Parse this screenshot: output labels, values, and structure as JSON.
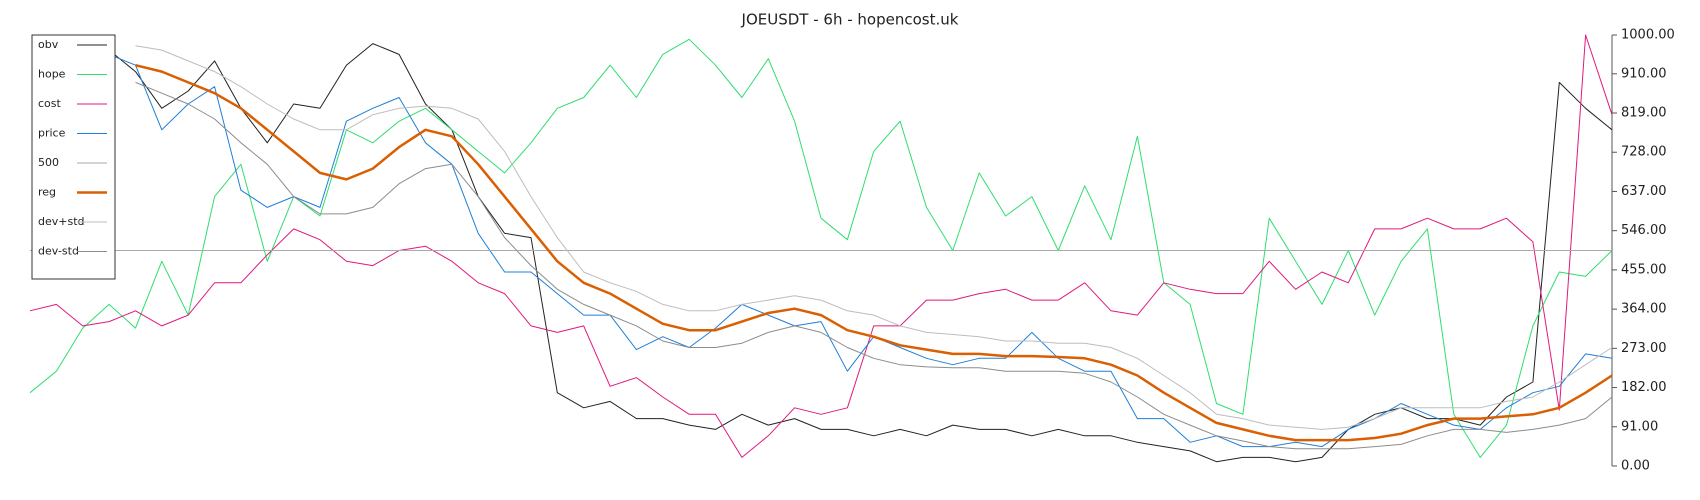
{
  "chart_data": {
    "type": "line",
    "title": "JOEUSDT - 6h - hopencost.uk",
    "ylim": [
      0,
      1000
    ],
    "yticks": [
      {
        "value": 0,
        "label": "0.00"
      },
      {
        "value": 91,
        "label": "91.00"
      },
      {
        "value": 182,
        "label": "182.00"
      },
      {
        "value": 273,
        "label": "273.00"
      },
      {
        "value": 364,
        "label": "364.00"
      },
      {
        "value": 455,
        "label": "455.00"
      },
      {
        "value": 546,
        "label": "546.00"
      },
      {
        "value": 637,
        "label": "637.00"
      },
      {
        "value": 728,
        "label": "728.00"
      },
      {
        "value": 819,
        "label": "819.00"
      },
      {
        "value": 910,
        "label": "910.00"
      },
      {
        "value": 1000,
        "label": "1000.00"
      }
    ],
    "grid": false,
    "legend": "upper left",
    "series": [
      {
        "name": "obv",
        "color": "#222222",
        "width": 1,
        "values": [
          null,
          null,
          null,
          965,
          915,
          830,
          870,
          940,
          830,
          750,
          840,
          830,
          930,
          980,
          955,
          840,
          780,
          625,
          540,
          530,
          170,
          135,
          150,
          110,
          110,
          95,
          85,
          120,
          95,
          110,
          85,
          85,
          70,
          85,
          70,
          95,
          85,
          85,
          70,
          85,
          70,
          70,
          55,
          45,
          35,
          10,
          20,
          20,
          10,
          20,
          85,
          120,
          135,
          110,
          110,
          95,
          160,
          195,
          890,
          830,
          780
        ]
      },
      {
        "name": "hope",
        "color": "#2ede6e",
        "width": 1,
        "values": [
          170,
          220,
          320,
          375,
          320,
          475,
          350,
          625,
          700,
          475,
          625,
          580,
          780,
          750,
          800,
          830,
          780,
          730,
          680,
          750,
          830,
          855,
          930,
          855,
          955,
          990,
          930,
          855,
          945,
          800,
          575,
          525,
          730,
          800,
          600,
          500,
          680,
          580,
          625,
          500,
          650,
          525,
          765,
          425,
          375,
          145,
          120,
          575,
          475,
          375,
          500,
          350,
          475,
          550,
          120,
          20,
          95,
          325,
          450,
          440,
          500
        ]
      },
      {
        "name": "cost",
        "color": "#e0197d",
        "width": 1,
        "values": [
          360,
          375,
          325,
          335,
          360,
          325,
          350,
          425,
          425,
          490,
          550,
          525,
          475,
          465,
          500,
          510,
          475,
          425,
          400,
          325,
          310,
          325,
          185,
          205,
          160,
          120,
          120,
          20,
          70,
          135,
          120,
          135,
          325,
          325,
          385,
          385,
          400,
          410,
          385,
          385,
          425,
          360,
          350,
          425,
          410,
          400,
          400,
          475,
          410,
          450,
          425,
          550,
          550,
          575,
          550,
          550,
          575,
          520,
          130,
          1000,
          815
        ]
      },
      {
        "name": "price",
        "color": "#1f7fd8",
        "width": 1,
        "values": [
          null,
          null,
          null,
          955,
          930,
          780,
          840,
          880,
          640,
          600,
          625,
          600,
          800,
          830,
          855,
          750,
          700,
          540,
          450,
          450,
          400,
          350,
          350,
          270,
          300,
          275,
          320,
          375,
          350,
          325,
          335,
          220,
          300,
          275,
          250,
          235,
          250,
          250,
          310,
          250,
          220,
          220,
          110,
          110,
          55,
          70,
          45,
          45,
          55,
          45,
          85,
          110,
          145,
          120,
          95,
          85,
          135,
          170,
          185,
          260,
          250
        ]
      },
      {
        "name": "500",
        "color": "#aaaaaa",
        "width": 1,
        "values": [
          500,
          500,
          500,
          500,
          500,
          500,
          500,
          500,
          500,
          500,
          500,
          500,
          500,
          500,
          500,
          500,
          500,
          500,
          500,
          500,
          500,
          500,
          500,
          500,
          500,
          500,
          500,
          500,
          500,
          500,
          500,
          500,
          500,
          500,
          500,
          500,
          500,
          500,
          500,
          500,
          500,
          500,
          500,
          500,
          500,
          500,
          500,
          500,
          500,
          500,
          500,
          500,
          500,
          500,
          500,
          500,
          500,
          500,
          500,
          500,
          500
        ]
      },
      {
        "name": "reg",
        "color": "#d95f02",
        "width": 2.5,
        "values": [
          null,
          null,
          null,
          null,
          930,
          915,
          890,
          865,
          830,
          780,
          730,
          680,
          665,
          690,
          740,
          780,
          765,
          700,
          625,
          550,
          475,
          425,
          400,
          365,
          330,
          315,
          315,
          335,
          355,
          365,
          350,
          315,
          300,
          280,
          270,
          260,
          260,
          255,
          255,
          253,
          250,
          235,
          210,
          170,
          135,
          100,
          85,
          70,
          60,
          60,
          60,
          65,
          75,
          95,
          110,
          110,
          115,
          120,
          135,
          170,
          210
        ]
      },
      {
        "name": "dev+std",
        "color": "#bdbdbd",
        "width": 1,
        "values": [
          null,
          null,
          null,
          null,
          975,
          965,
          940,
          915,
          880,
          840,
          805,
          780,
          780,
          815,
          830,
          835,
          830,
          805,
          730,
          625,
          530,
          450,
          425,
          405,
          375,
          360,
          360,
          375,
          385,
          395,
          385,
          360,
          350,
          325,
          310,
          305,
          300,
          290,
          290,
          285,
          285,
          275,
          250,
          210,
          170,
          120,
          110,
          95,
          90,
          85,
          90,
          110,
          135,
          135,
          135,
          135,
          150,
          160,
          195,
          235,
          275
        ]
      },
      {
        "name": "dev-std",
        "color": "#8c8c8c",
        "width": 1,
        "values": [
          null,
          null,
          null,
          null,
          890,
          865,
          840,
          805,
          750,
          700,
          625,
          585,
          585,
          600,
          655,
          690,
          700,
          625,
          530,
          465,
          410,
          375,
          350,
          325,
          290,
          275,
          275,
          285,
          310,
          325,
          310,
          275,
          250,
          235,
          230,
          228,
          228,
          220,
          220,
          220,
          215,
          195,
          160,
          120,
          95,
          70,
          58,
          45,
          40,
          40,
          40,
          45,
          50,
          70,
          85,
          85,
          78,
          85,
          95,
          110,
          160
        ]
      }
    ]
  }
}
